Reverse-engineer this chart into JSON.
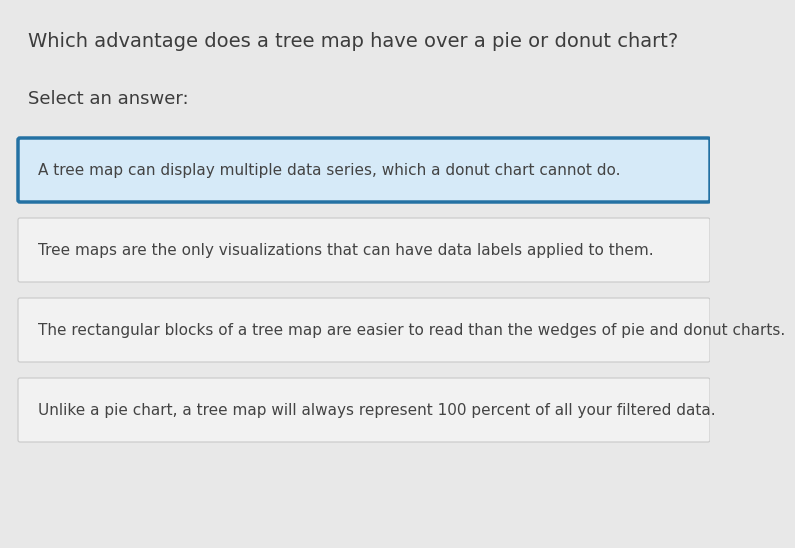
{
  "question": "Which advantage does a tree map have over a pie or donut chart?",
  "select_label": "Select an answer:",
  "options": [
    "A tree map can display multiple data series, which a donut chart cannot do.",
    "Tree maps are the only visualizations that can have data labels applied to them.",
    "The rectangular blocks of a tree map are easier to read than the wedges of pie and donut charts.",
    "Unlike a pie chart, a tree map will always represent 100 percent of all your filtered data."
  ],
  "selected_index": 0,
  "bg_color": "#e8e8e8",
  "option_bg_normal": "#f2f2f2",
  "option_bg_selected": "#d6eaf8",
  "option_border_normal": "#c8c8c8",
  "option_border_selected": "#2471a3",
  "question_color": "#3d3d3d",
  "select_label_color": "#3d3d3d",
  "option_text_color": "#444444",
  "question_fontsize": 14,
  "select_label_fontsize": 13,
  "option_fontsize": 11
}
